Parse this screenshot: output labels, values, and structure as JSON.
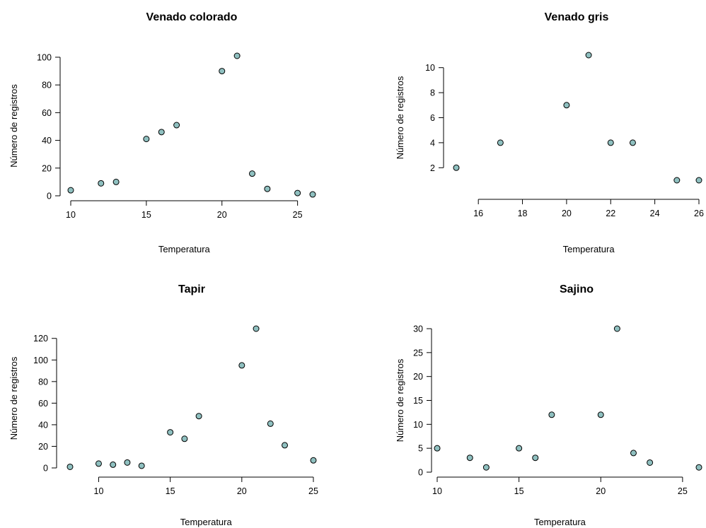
{
  "colors": {
    "point_fill": "#8fc0c0",
    "point_stroke": "#000000",
    "background": "#ffffff"
  },
  "chart_data": [
    {
      "type": "scatter",
      "title": "Venado colorado",
      "xlabel": "Temperatura",
      "ylabel": "Número de registros",
      "xlim": [
        10,
        26
      ],
      "ylim": [
        0,
        101
      ],
      "xticks": [
        10,
        15,
        20,
        25
      ],
      "yticks": [
        0,
        20,
        40,
        60,
        80,
        100
      ],
      "x": [
        10,
        12,
        13,
        15,
        16,
        17,
        20,
        21,
        22,
        23,
        25,
        26
      ],
      "y": [
        4,
        9,
        10,
        41,
        46,
        51,
        90,
        101,
        16,
        5,
        2,
        1
      ]
    },
    {
      "type": "scatter",
      "title": "Venado gris",
      "xlabel": "Temperatura",
      "ylabel": "Número de registros",
      "xlim": [
        15,
        26
      ],
      "ylim": [
        1,
        11
      ],
      "xticks": [
        16,
        18,
        20,
        22,
        24,
        26
      ],
      "yticks": [
        2,
        4,
        6,
        8,
        10
      ],
      "x": [
        15,
        17,
        20,
        21,
        22,
        23,
        25,
        26
      ],
      "y": [
        2,
        4,
        7,
        11,
        4,
        4,
        1,
        1
      ]
    },
    {
      "type": "scatter",
      "title": "Tapir",
      "xlabel": "Temperatura",
      "ylabel": "Número de registros",
      "xlim": [
        8,
        25
      ],
      "ylim": [
        0,
        129
      ],
      "xticks": [
        10,
        15,
        20,
        25
      ],
      "yticks": [
        0,
        20,
        40,
        60,
        80,
        100,
        120
      ],
      "x": [
        8,
        10,
        11,
        12,
        13,
        15,
        16,
        17,
        20,
        21,
        22,
        23,
        25
      ],
      "y": [
        1,
        4,
        3,
        5,
        2,
        33,
        27,
        48,
        95,
        129,
        41,
        21,
        7
      ]
    },
    {
      "type": "scatter",
      "title": "Sajino",
      "xlabel": "Temperatura",
      "ylabel": "Número de registros",
      "xlim": [
        10,
        26
      ],
      "ylim": [
        0,
        30
      ],
      "xticks": [
        10,
        15,
        20,
        25
      ],
      "yticks": [
        0,
        5,
        10,
        15,
        20,
        25,
        30
      ],
      "x": [
        10,
        12,
        13,
        15,
        16,
        17,
        20,
        21,
        22,
        23,
        26
      ],
      "y": [
        5,
        3,
        1,
        5,
        3,
        12,
        12,
        30,
        4,
        2,
        1
      ]
    }
  ]
}
